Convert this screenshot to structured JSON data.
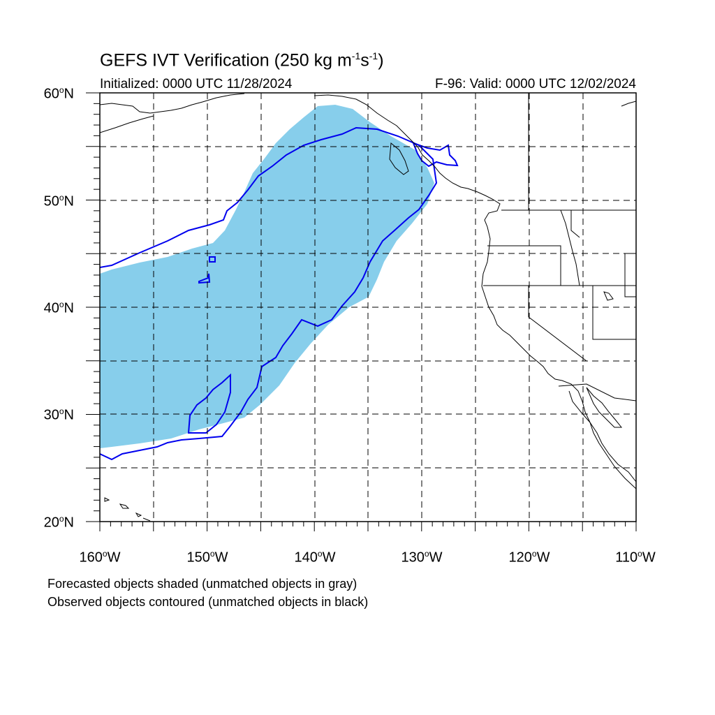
{
  "title": {
    "main": "GEFS IVT Verification (250 kg m",
    "exp1": "-1",
    "mid": "s",
    "exp2": "-1",
    "end": ")"
  },
  "initialized": "Initialized: 0000 UTC 11/28/2024",
  "valid": "F-96: Valid: 0000 UTC 12/02/2024",
  "lat_labels": [
    {
      "num": "60",
      "deg": "o",
      "hem": "N"
    },
    {
      "num": "50",
      "deg": "o",
      "hem": "N"
    },
    {
      "num": "40",
      "deg": "o",
      "hem": "N"
    },
    {
      "num": "30",
      "deg": "o",
      "hem": "N"
    },
    {
      "num": "20",
      "deg": "o",
      "hem": "N"
    }
  ],
  "lon_labels": [
    {
      "num": "160",
      "deg": "o",
      "hem": "W"
    },
    {
      "num": "150",
      "deg": "o",
      "hem": "W"
    },
    {
      "num": "140",
      "deg": "o",
      "hem": "W"
    },
    {
      "num": "130",
      "deg": "o",
      "hem": "W"
    },
    {
      "num": "120",
      "deg": "o",
      "hem": "W"
    },
    {
      "num": "110",
      "deg": "o",
      "hem": "W"
    }
  ],
  "notes": [
    "Forecasted objects shaded (unmatched objects in gray)",
    "Observed objects contoured (unmatched objects in black)"
  ],
  "map": {
    "lon_range": [
      -160,
      -110
    ],
    "lat_range": [
      20,
      60
    ],
    "grid_lon_step": 5,
    "grid_lat_step": 5,
    "forecast_fill_color": "#87ceeb",
    "observed_contour_color": "#0000ee",
    "coast_color": "#000000"
  }
}
